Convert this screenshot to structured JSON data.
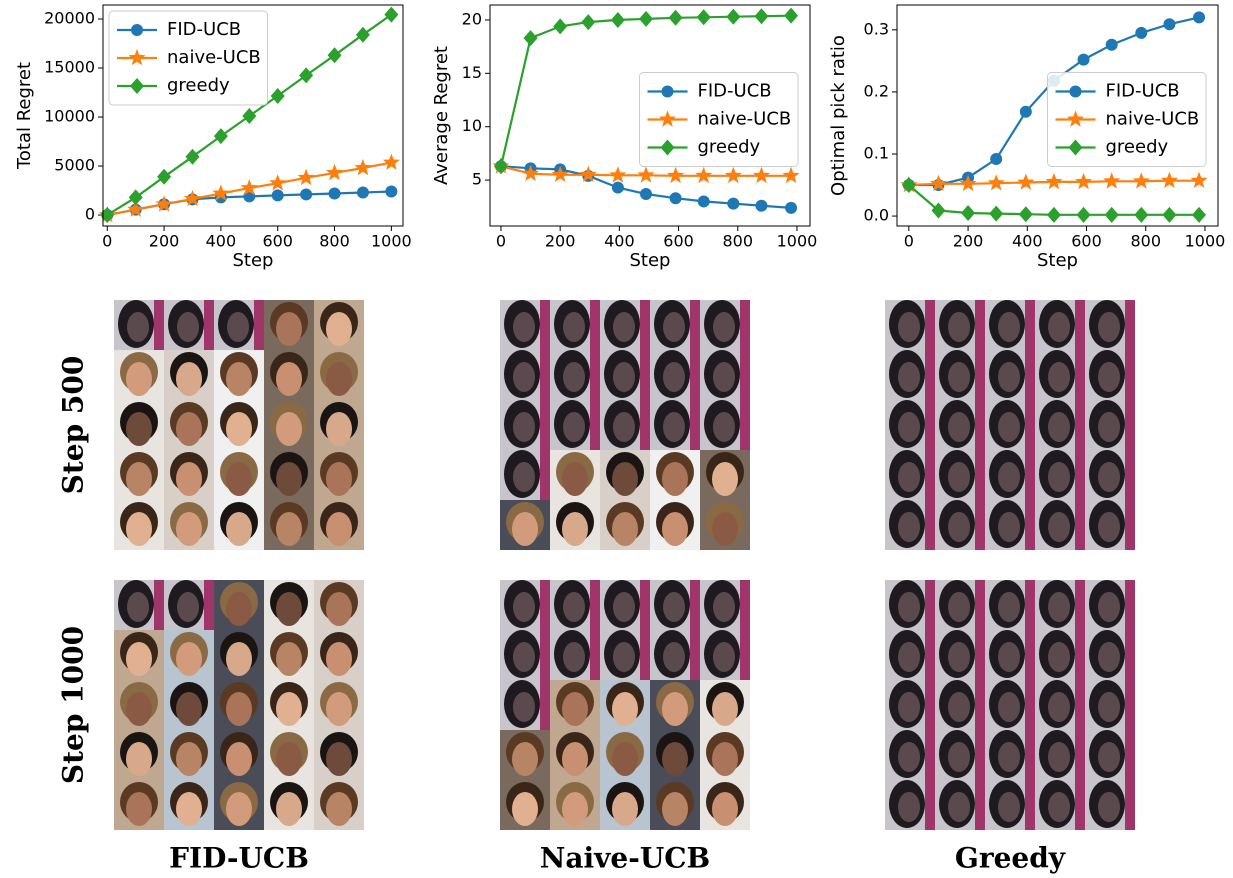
{
  "chart_data": [
    {
      "type": "line",
      "xlabel": "Step",
      "ylabel": "Total Regret",
      "x": [
        0,
        100,
        200,
        300,
        400,
        500,
        600,
        700,
        800,
        900,
        1000
      ],
      "series": [
        {
          "name": "FID-UCB",
          "color": "#1f77b4",
          "marker": "circle",
          "values": [
            0,
            550,
            1100,
            1600,
            1800,
            1900,
            2000,
            2100,
            2200,
            2300,
            2400
          ]
        },
        {
          "name": "naive-UCB",
          "color": "#ff7f0e",
          "marker": "star",
          "values": [
            0,
            550,
            1100,
            1650,
            2200,
            2750,
            3250,
            3800,
            4300,
            4800,
            5350
          ]
        },
        {
          "name": "greedy",
          "color": "#2ca02c",
          "marker": "diamond",
          "values": [
            0,
            1800,
            3900,
            5950,
            8050,
            10100,
            12150,
            14250,
            16300,
            18400,
            20450
          ]
        }
      ],
      "xlim": [
        -15,
        1041
      ],
      "ylim": [
        -1120,
        21430
      ],
      "xticks": [
        0,
        200,
        400,
        600,
        800,
        1000
      ],
      "yticks": [
        0,
        5000,
        10000,
        15000,
        20000
      ],
      "legend": "upper left"
    },
    {
      "type": "line",
      "xlabel": "Step",
      "ylabel": "Average Regret",
      "x": [
        0,
        100,
        200,
        295,
        395,
        490,
        590,
        685,
        785,
        880,
        980
      ],
      "series": [
        {
          "name": "FID-UCB",
          "color": "#1f77b4",
          "marker": "circle",
          "values": [
            6.3,
            6.1,
            6.0,
            5.4,
            4.3,
            3.7,
            3.3,
            3.0,
            2.8,
            2.6,
            2.4
          ]
        },
        {
          "name": "naive-UCB",
          "color": "#ff7f0e",
          "marker": "star",
          "values": [
            6.3,
            5.6,
            5.5,
            5.5,
            5.45,
            5.45,
            5.4,
            5.4,
            5.4,
            5.4,
            5.4
          ]
        },
        {
          "name": "greedy",
          "color": "#2ca02c",
          "marker": "diamond",
          "values": [
            6.3,
            18.3,
            19.4,
            19.8,
            20.0,
            20.1,
            20.2,
            20.25,
            20.3,
            20.35,
            20.4
          ]
        }
      ],
      "xlim": [
        -37,
        1044
      ],
      "ylim": [
        0.7,
        21.4
      ],
      "xticks": [
        0,
        200,
        400,
        600,
        800,
        1000
      ],
      "yticks": [
        5,
        10,
        15,
        20
      ],
      "legend": "center right"
    },
    {
      "type": "line",
      "xlabel": "Step",
      "ylabel": "Optimal pick ratio",
      "x": [
        0,
        100,
        200,
        295,
        395,
        490,
        590,
        685,
        785,
        880,
        980
      ],
      "series": [
        {
          "name": "FID-UCB",
          "color": "#1f77b4",
          "marker": "circle",
          "values": [
            0.05,
            0.05,
            0.062,
            0.092,
            0.168,
            0.218,
            0.252,
            0.276,
            0.295,
            0.309,
            0.32
          ]
        },
        {
          "name": "naive-UCB",
          "color": "#ff7f0e",
          "marker": "star",
          "values": [
            0.05,
            0.052,
            0.052,
            0.053,
            0.054,
            0.055,
            0.055,
            0.056,
            0.056,
            0.057,
            0.057
          ]
        },
        {
          "name": "greedy",
          "color": "#2ca02c",
          "marker": "diamond",
          "values": [
            0.05,
            0.009,
            0.005,
            0.004,
            0.003,
            0.002,
            0.002,
            0.002,
            0.002,
            0.002,
            0.002
          ]
        }
      ],
      "xlim": [
        -40,
        1044
      ],
      "ylim": [
        -0.016,
        0.34
      ],
      "xticks": [
        0,
        200,
        400,
        600,
        800,
        1000
      ],
      "yticks": [
        {
          "value": 0,
          "label": "0.0"
        },
        0.1,
        0.2,
        0.3
      ],
      "legend": "center right"
    }
  ],
  "image_grid": {
    "row_labels": [
      "Step 500",
      "Step 1000"
    ],
    "column_labels": [
      "FID-UCB",
      "Naive-UCB",
      "Greedy"
    ]
  }
}
